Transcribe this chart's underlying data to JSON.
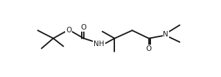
{
  "bg_color": "#ffffff",
  "line_color": "#1a1a1a",
  "line_width": 1.4,
  "font_size_atom": 7.5,
  "figsize": [
    3.19,
    1.12
  ],
  "dpi": 100,
  "xlim": [
    0,
    319
  ],
  "ylim": [
    0,
    112
  ]
}
